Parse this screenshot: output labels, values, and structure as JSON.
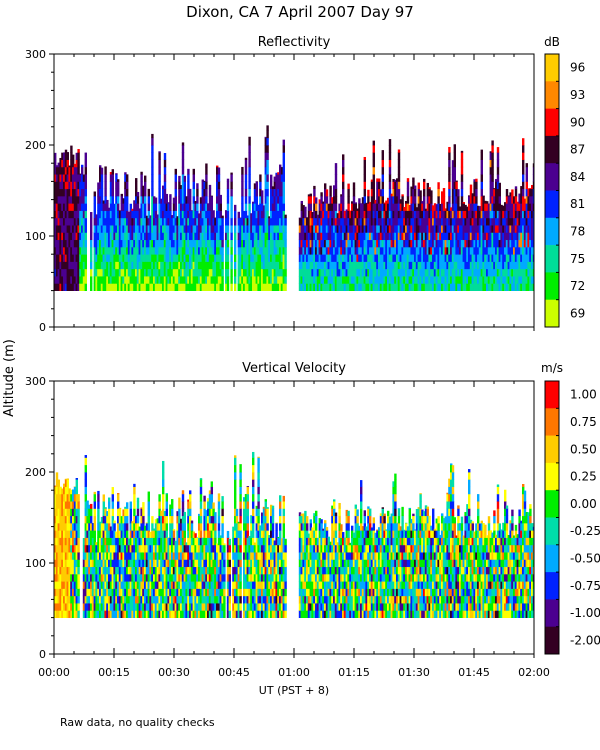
{
  "page_title": "Dixon, CA   7 April 2007   Day  97",
  "y_axis_label": "Altitude (m)",
  "x_axis_label": "UT   (PST + 8)",
  "footnote": "Raw data, no quality checks",
  "chart_data": [
    {
      "type": "heatmap",
      "title": "Reflectivity",
      "xlabel": "UT   (PST + 8)",
      "ylabel": "Altitude (m)",
      "x_ticks": [
        "00:00",
        "00:15",
        "00:30",
        "00:45",
        "01:00",
        "01:15",
        "01:30",
        "01:45",
        "02:00"
      ],
      "xlim": [
        "00:00",
        "02:00"
      ],
      "y_ticks": [
        0,
        100,
        200,
        300
      ],
      "ylim": [
        0,
        300
      ],
      "colorbar": {
        "unit": "dB",
        "labels": [
          "96",
          "93",
          "90",
          "87",
          "84",
          "81",
          "78",
          "75",
          "72",
          "69"
        ],
        "colors": [
          "#ffcc00",
          "#ff8800",
          "#ff0000",
          "#330022",
          "#4b0090",
          "#0022ff",
          "#00aaff",
          "#00dd99",
          "#00ee00",
          "#ccff00"
        ]
      },
      "data_gap": [
        "00:58",
        "01:01"
      ],
      "data_range_m": [
        40,
        240
      ],
      "grid": false
    },
    {
      "type": "heatmap",
      "title": "Vertical Velocity",
      "xlabel": "UT   (PST + 8)",
      "ylabel": "Altitude (m)",
      "x_ticks": [
        "00:00",
        "00:15",
        "00:30",
        "00:45",
        "01:00",
        "01:15",
        "01:30",
        "01:45",
        "02:00"
      ],
      "xlim": [
        "00:00",
        "02:00"
      ],
      "y_ticks": [
        0,
        100,
        200,
        300
      ],
      "ylim": [
        0,
        300
      ],
      "colorbar": {
        "unit": "m/s",
        "labels": [
          "1.00",
          "0.75",
          "0.50",
          "0.25",
          "0.00",
          "-0.25",
          "-0.50",
          "-0.75",
          "-1.00",
          "-2.00"
        ],
        "colors": [
          "#ff0000",
          "#ff7700",
          "#ffcc00",
          "#ffff00",
          "#00ee00",
          "#00ddaa",
          "#00aaff",
          "#0022ff",
          "#4b0090",
          "#330022"
        ]
      },
      "data_gap": [
        "00:58",
        "01:01"
      ],
      "data_range_m": [
        40,
        240
      ],
      "grid": false
    }
  ]
}
